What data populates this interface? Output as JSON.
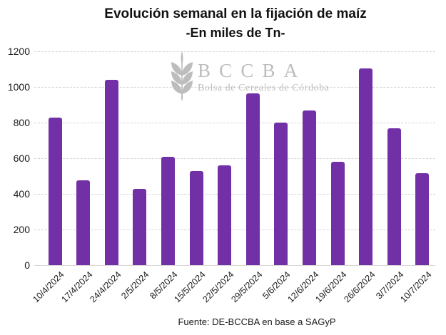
{
  "chart_data": {
    "type": "bar",
    "title": "Evolución semanal en la fijación de maíz",
    "subtitle": "-En miles de Tn-",
    "categories": [
      "10/4/2024",
      "17/4/2024",
      "24/4/2024",
      "2/5/2024",
      "8/5/2024",
      "15/5/2024",
      "22/5/2024",
      "29/5/2024",
      "5/6/2024",
      "12/6/2024",
      "19/6/2024",
      "26/6/2024",
      "3/7/2024",
      "10/7/2024"
    ],
    "values": [
      830,
      475,
      1040,
      430,
      610,
      530,
      560,
      965,
      800,
      870,
      580,
      1105,
      770,
      515
    ],
    "xlabel": "",
    "ylabel": "",
    "ylim": [
      0,
      1200
    ],
    "yticks": [
      0,
      200,
      400,
      600,
      800,
      1000,
      1200
    ],
    "grid": "horizontal-dashed",
    "legend": "none",
    "source": "Fuente: DE-BCCBA en base a SAGyP",
    "watermark": {
      "acronym": "BCCBA",
      "name": "Bolsa de Cereales de Córdoba"
    },
    "colors": {
      "bar": "#7230A6",
      "grid": "#d4d4d4",
      "axis_line": "#d9d9d9",
      "text": "#1a1a1a",
      "watermark": "#bdbdbd"
    }
  }
}
